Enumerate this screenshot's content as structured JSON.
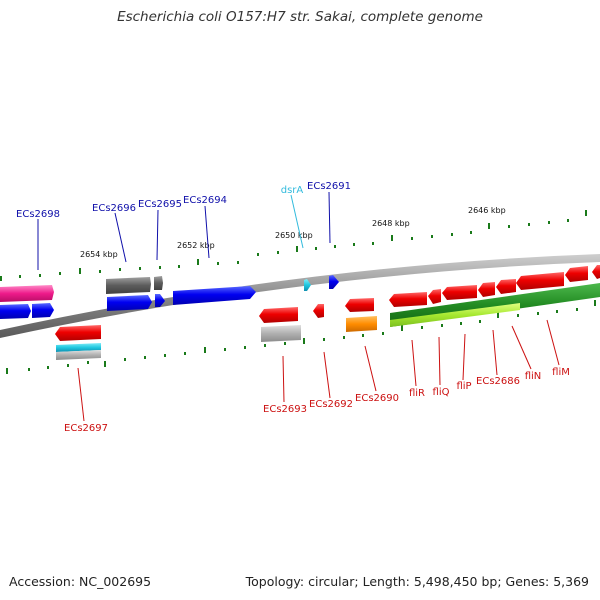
{
  "title": "Escherichia coli O157:H7 str. Sakai, complete genome",
  "footer": {
    "accession": "Accession: NC_002695",
    "summary": "Topology: circular; Length: 5,498,450 bp; Genes: 5,369"
  },
  "ticks": [
    "2654 kbp",
    "2652 kbp",
    "2650 kbp",
    "2648 kbp",
    "2646 kbp"
  ],
  "genes_top": [
    "ECs2698",
    "ECs2696",
    "ECs2695",
    "ECs2694",
    "dsrA",
    "ECs2691"
  ],
  "genes_bottom": [
    "ECs2697",
    "ECs2693",
    "ECs2692",
    "ECs2690",
    "fliR",
    "fliQ",
    "fliP",
    "ECs2686",
    "fliN",
    "fliM"
  ],
  "colors": {
    "forward": "#0000ee",
    "reverse": "#ee0000",
    "rna": "#33bbdd",
    "backbone": "#777777",
    "tick": "#1a7a1a",
    "label_top": "#1010aa",
    "label_bottom": "#cc1111"
  }
}
